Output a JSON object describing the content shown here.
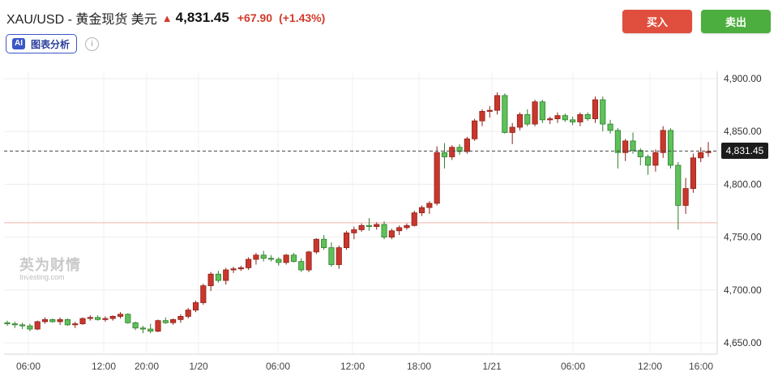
{
  "header": {
    "symbol": "XAU/USD - 黄金现货 美元",
    "price": "4,831.45",
    "change": "+67.90",
    "change_pct": "(+1.43%)",
    "ai_badge": "AI",
    "ai_label": "图表分析",
    "info_icon": "i"
  },
  "actions": {
    "buy_label": "买入",
    "sell_label": "卖出"
  },
  "watermark": {
    "cn": "英为财情",
    "en": "Investing.com"
  },
  "colors": {
    "up": "#d23a2a",
    "down": "#2e9e2e",
    "buy": "#e04e3e",
    "sell": "#4cae3e",
    "last_price_tag": "#1c1c1c"
  },
  "chart_data": {
    "type": "candlestick",
    "title": "",
    "xlabel": "",
    "ylabel": "",
    "ylim": [
      4635,
      4910
    ],
    "y_ticks": [
      "4,900.00",
      "4,850.00",
      "4,800.00",
      "4,750.00",
      "4,700.00",
      "4,650.00"
    ],
    "y_tick_values": [
      4900,
      4850,
      4800,
      4750,
      4700,
      4650
    ],
    "x_ticks": [
      "06:00",
      "12:00",
      "20:00",
      "1/20",
      "06:00",
      "12:00",
      "18:00",
      "1/21",
      "06:00",
      "12:00",
      "16:00"
    ],
    "last_price": 4831.45,
    "last_price_label": "4,831.45",
    "reference_level": 4763.55,
    "grid": true,
    "up_color": "red",
    "down_color": "green",
    "candles": [
      [
        4669,
        4671,
        4666,
        4668
      ],
      [
        4668,
        4670,
        4664,
        4667
      ],
      [
        4667,
        4669,
        4663,
        4666
      ],
      [
        4666,
        4668,
        4661,
        4663
      ],
      [
        4663,
        4671,
        4662,
        4670
      ],
      [
        4670,
        4674,
        4668,
        4672
      ],
      [
        4672,
        4673,
        4669,
        4670
      ],
      [
        4670,
        4674,
        4667,
        4672
      ],
      [
        4672,
        4673,
        4666,
        4667
      ],
      [
        4667,
        4670,
        4664,
        4668
      ],
      [
        4668,
        4674,
        4667,
        4673
      ],
      [
        4673,
        4676,
        4671,
        4674
      ],
      [
        4674,
        4676,
        4671,
        4672
      ],
      [
        4672,
        4675,
        4670,
        4673
      ],
      [
        4673,
        4676,
        4671,
        4675
      ],
      [
        4675,
        4679,
        4673,
        4677
      ],
      [
        4677,
        4678,
        4668,
        4669
      ],
      [
        4669,
        4670,
        4662,
        4664
      ],
      [
        4664,
        4666,
        4659,
        4663
      ],
      [
        4663,
        4668,
        4659,
        4661
      ],
      [
        4661,
        4672,
        4660,
        4671
      ],
      [
        4671,
        4674,
        4668,
        4669
      ],
      [
        4669,
        4673,
        4667,
        4672
      ],
      [
        4672,
        4677,
        4669,
        4675
      ],
      [
        4675,
        4683,
        4673,
        4681
      ],
      [
        4681,
        4690,
        4679,
        4688
      ],
      [
        4688,
        4706,
        4686,
        4704
      ],
      [
        4704,
        4717,
        4699,
        4715
      ],
      [
        4715,
        4718,
        4707,
        4709
      ],
      [
        4709,
        4721,
        4705,
        4719
      ],
      [
        4719,
        4722,
        4716,
        4720
      ],
      [
        4720,
        4723,
        4718,
        4721
      ],
      [
        4721,
        4731,
        4719,
        4729
      ],
      [
        4729,
        4735,
        4724,
        4733
      ],
      [
        4733,
        4737,
        4727,
        4730
      ],
      [
        4730,
        4733,
        4727,
        4729
      ],
      [
        4729,
        4731,
        4723,
        4726
      ],
      [
        4726,
        4734,
        4724,
        4733
      ],
      [
        4733,
        4735,
        4726,
        4727
      ],
      [
        4727,
        4730,
        4717,
        4719
      ],
      [
        4719,
        4737,
        4717,
        4736
      ],
      [
        4736,
        4749,
        4734,
        4748
      ],
      [
        4748,
        4752,
        4738,
        4740
      ],
      [
        4740,
        4745,
        4722,
        4724
      ],
      [
        4724,
        4742,
        4720,
        4740
      ],
      [
        4740,
        4756,
        4738,
        4754
      ],
      [
        4754,
        4760,
        4748,
        4757
      ],
      [
        4757,
        4763,
        4755,
        4761
      ],
      [
        4761,
        4768,
        4756,
        4760
      ],
      [
        4760,
        4764,
        4757,
        4762
      ],
      [
        4762,
        4765,
        4748,
        4750
      ],
      [
        4750,
        4758,
        4748,
        4756
      ],
      [
        4756,
        4761,
        4752,
        4759
      ],
      [
        4759,
        4763,
        4757,
        4761
      ],
      [
        4761,
        4775,
        4760,
        4773
      ],
      [
        4773,
        4780,
        4770,
        4778
      ],
      [
        4778,
        4784,
        4772,
        4782
      ],
      [
        4782,
        4836,
        4780,
        4830
      ],
      [
        4830,
        4839,
        4815,
        4826
      ],
      [
        4826,
        4837,
        4823,
        4835
      ],
      [
        4835,
        4838,
        4828,
        4831
      ],
      [
        4831,
        4845,
        4829,
        4843
      ],
      [
        4843,
        4862,
        4841,
        4860
      ],
      [
        4860,
        4871,
        4855,
        4869
      ],
      [
        4869,
        4874,
        4863,
        4870
      ],
      [
        4870,
        4887,
        4866,
        4884
      ],
      [
        4884,
        4886,
        4848,
        4849
      ],
      [
        4849,
        4858,
        4838,
        4854
      ],
      [
        4854,
        4868,
        4851,
        4866
      ],
      [
        4866,
        4871,
        4855,
        4857
      ],
      [
        4857,
        4880,
        4855,
        4878
      ],
      [
        4878,
        4880,
        4858,
        4861
      ],
      [
        4861,
        4864,
        4857,
        4862
      ],
      [
        4862,
        4868,
        4858,
        4865
      ],
      [
        4865,
        4867,
        4859,
        4861
      ],
      [
        4861,
        4864,
        4856,
        4859
      ],
      [
        4859,
        4868,
        4855,
        4866
      ],
      [
        4866,
        4868,
        4860,
        4862
      ],
      [
        4862,
        4883,
        4858,
        4880
      ],
      [
        4880,
        4883,
        4850,
        4857
      ],
      [
        4857,
        4861,
        4848,
        4851
      ],
      [
        4851,
        4853,
        4815,
        4830
      ],
      [
        4830,
        4843,
        4822,
        4841
      ],
      [
        4841,
        4849,
        4829,
        4832
      ],
      [
        4832,
        4834,
        4818,
        4826
      ],
      [
        4826,
        4828,
        4809,
        4818
      ],
      [
        4818,
        4833,
        4812,
        4830
      ],
      [
        4830,
        4855,
        4825,
        4851
      ],
      [
        4851,
        4853,
        4815,
        4818
      ],
      [
        4818,
        4821,
        4757,
        4780
      ],
      [
        4780,
        4806,
        4772,
        4796
      ],
      [
        4796,
        4829,
        4792,
        4825
      ],
      [
        4825,
        4835,
        4821,
        4830
      ],
      [
        4830,
        4840,
        4826,
        4831
      ]
    ]
  }
}
